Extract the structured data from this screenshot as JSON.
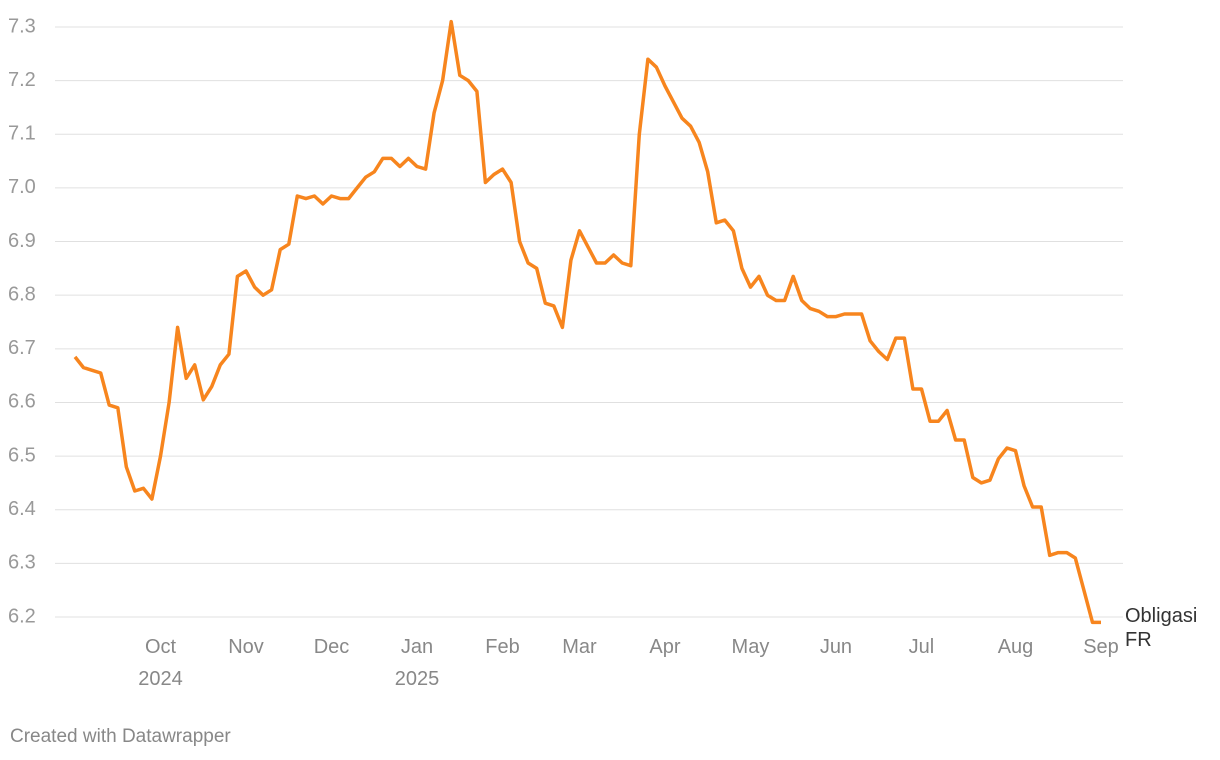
{
  "chart_data": {
    "type": "line",
    "categories": [
      null,
      null,
      null,
      null,
      null,
      null,
      null,
      null,
      null,
      null,
      "Oct 2024",
      null,
      null,
      null,
      null,
      null,
      null,
      null,
      null,
      null,
      "Nov",
      null,
      null,
      null,
      null,
      null,
      null,
      null,
      null,
      null,
      "Dec",
      null,
      null,
      null,
      null,
      null,
      null,
      null,
      null,
      null,
      "Jan 2025",
      null,
      null,
      null,
      null,
      null,
      null,
      null,
      null,
      null,
      "Feb",
      null,
      null,
      null,
      null,
      null,
      null,
      null,
      null,
      "Mar",
      null,
      null,
      null,
      null,
      null,
      null,
      null,
      null,
      null,
      "Apr",
      null,
      null,
      null,
      null,
      null,
      null,
      null,
      null,
      null,
      "May",
      null,
      null,
      null,
      null,
      null,
      null,
      null,
      null,
      null,
      "Jun",
      null,
      null,
      null,
      null,
      null,
      null,
      null,
      null,
      null,
      "Jul",
      null,
      null,
      null,
      null,
      null,
      null,
      null,
      null,
      null,
      null,
      "Aug",
      null,
      null,
      null,
      null,
      null,
      null,
      null,
      null,
      null,
      "Sep"
    ],
    "series": [
      {
        "name": "Obligasi FR",
        "color": "#f7851e",
        "values": [
          6.685,
          6.665,
          6.66,
          6.655,
          6.595,
          6.59,
          6.48,
          6.435,
          6.44,
          6.42,
          6.5,
          6.6,
          6.74,
          6.645,
          6.67,
          6.605,
          6.63,
          6.67,
          6.69,
          6.835,
          6.845,
          6.815,
          6.8,
          6.81,
          6.885,
          6.895,
          6.985,
          6.98,
          6.985,
          6.97,
          6.985,
          6.98,
          6.98,
          7.0,
          7.02,
          7.03,
          7.055,
          7.055,
          7.04,
          7.055,
          7.04,
          7.035,
          7.14,
          7.2,
          7.31,
          7.21,
          7.2,
          7.18,
          7.01,
          7.025,
          7.035,
          7.01,
          6.9,
          6.86,
          6.85,
          6.785,
          6.78,
          6.74,
          6.865,
          6.92,
          6.89,
          6.86,
          6.86,
          6.875,
          6.86,
          6.855,
          7.1,
          7.24,
          7.225,
          7.19,
          7.16,
          7.13,
          7.115,
          7.085,
          7.03,
          6.935,
          6.94,
          6.92,
          6.85,
          6.815,
          6.835,
          6.8,
          6.79,
          6.79,
          6.835,
          6.79,
          6.775,
          6.77,
          6.76,
          6.76,
          6.765,
          6.765,
          6.765,
          6.715,
          6.695,
          6.68,
          6.72,
          6.72,
          6.625,
          6.625,
          6.565,
          6.565,
          6.585,
          6.53,
          6.53,
          6.46,
          6.45,
          6.455,
          6.495,
          6.515,
          6.51,
          6.445,
          6.405,
          6.405,
          6.315,
          6.32,
          6.32,
          6.31,
          6.25,
          6.19,
          6.19
        ]
      }
    ],
    "ylim": [
      6.2,
      7.3
    ],
    "yticks": [
      6.2,
      6.3,
      6.4,
      6.5,
      6.6,
      6.7,
      6.8,
      6.9,
      {
        "value": 7,
        "label": "7.0"
      },
      7.1,
      7.2,
      7.3
    ],
    "grid": true,
    "credit": "Created with Datawrapper"
  }
}
